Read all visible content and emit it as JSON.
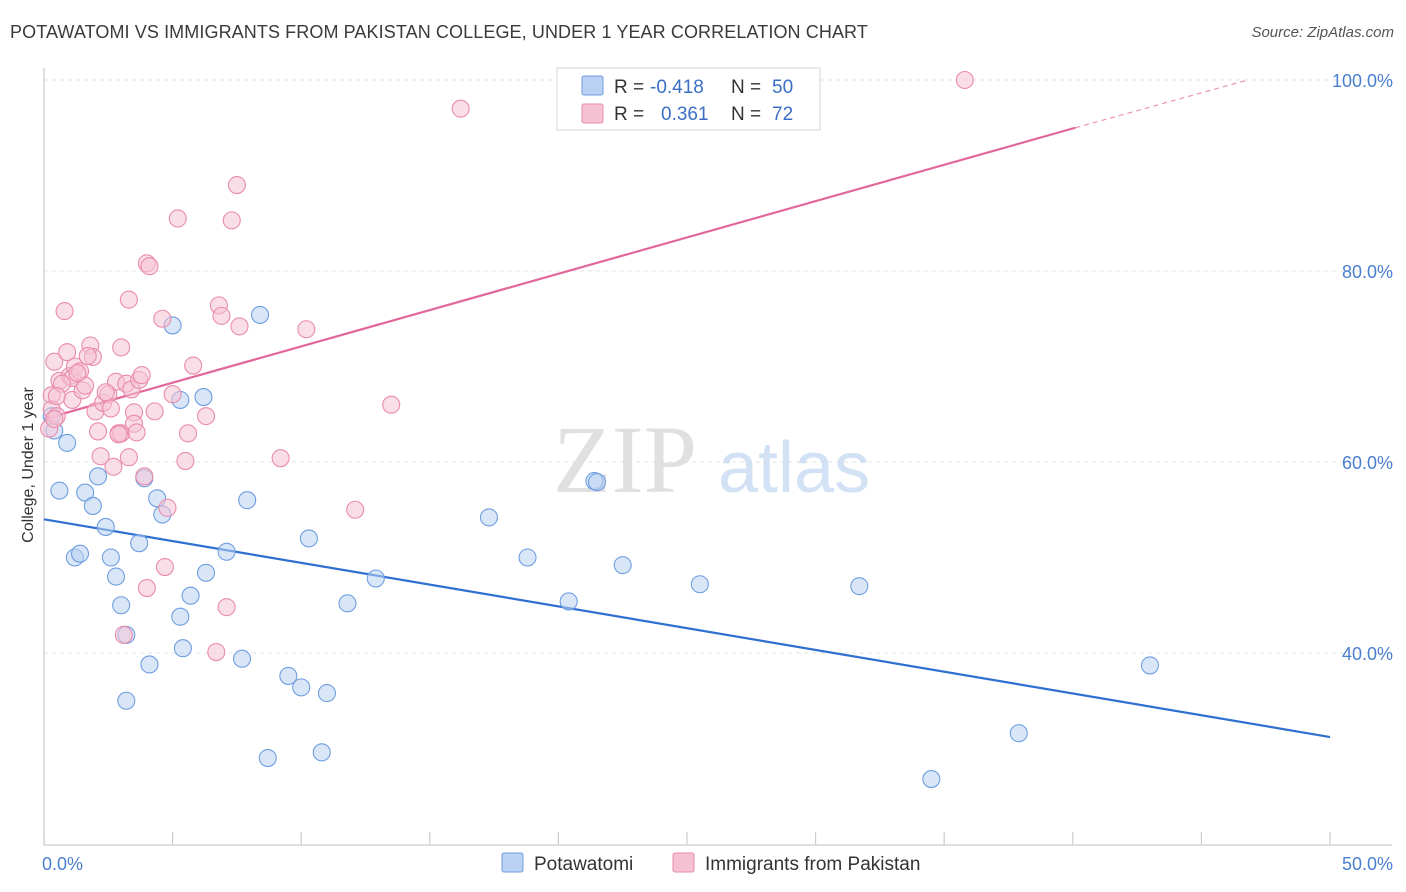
{
  "title": "POTAWATOMI VS IMMIGRANTS FROM PAKISTAN COLLEGE, UNDER 1 YEAR CORRELATION CHART",
  "source": "Source: ZipAtlas.com",
  "watermark": {
    "zip": "ZIP",
    "atlas": "atlas"
  },
  "legend": {
    "rows": [
      {
        "r_label": "R =",
        "r_value": "-0.418",
        "n_label": "N =",
        "n_value": "50"
      },
      {
        "r_label": "R =",
        "r_value": "0.361",
        "n_label": "N =",
        "n_value": "72"
      }
    ]
  },
  "chart_data": {
    "type": "scatter",
    "title": "POTAWATOMI VS IMMIGRANTS FROM PAKISTAN COLLEGE, UNDER 1 YEAR CORRELATION CHART",
    "xlabel": "",
    "ylabel": "College, Under 1 year",
    "xlim": [
      0,
      50
    ],
    "ylim": [
      22,
      102
    ],
    "x_tick_labels": [
      {
        "value": 0,
        "label": "0.0%"
      },
      {
        "value": 50,
        "label": "50.0%"
      }
    ],
    "y_tick_labels": [
      {
        "value": 40,
        "label": "40.0%"
      },
      {
        "value": 60,
        "label": "60.0%"
      },
      {
        "value": 80,
        "label": "80.0%"
      },
      {
        "value": 100,
        "label": "100.0%"
      }
    ],
    "grid": true,
    "legend_position": "top-center",
    "series": [
      {
        "name": "Potawatomi",
        "color": "#6f9ee0",
        "fill": "#b9d1f3",
        "trend": {
          "x0": 0,
          "y0": 54.0,
          "x1": 50,
          "y1": 31.2
        },
        "points": [
          [
            0.3,
            64.8
          ],
          [
            0.4,
            63.3
          ],
          [
            0.6,
            57.0
          ],
          [
            0.9,
            62.0
          ],
          [
            1.2,
            50.0
          ],
          [
            1.4,
            50.4
          ],
          [
            1.6,
            56.8
          ],
          [
            1.9,
            55.4
          ],
          [
            2.1,
            58.5
          ],
          [
            2.4,
            53.2
          ],
          [
            2.6,
            50.0
          ],
          [
            2.8,
            48.0
          ],
          [
            3.0,
            45.0
          ],
          [
            3.2,
            41.9
          ],
          [
            3.2,
            35.0
          ],
          [
            3.7,
            51.5
          ],
          [
            3.9,
            58.3
          ],
          [
            4.1,
            38.8
          ],
          [
            4.4,
            56.2
          ],
          [
            4.6,
            54.5
          ],
          [
            5.0,
            74.3
          ],
          [
            5.3,
            43.8
          ],
          [
            5.3,
            66.5
          ],
          [
            5.4,
            40.5
          ],
          [
            5.7,
            46.0
          ],
          [
            6.2,
            66.8
          ],
          [
            6.3,
            48.4
          ],
          [
            7.1,
            50.6
          ],
          [
            7.7,
            39.4
          ],
          [
            7.9,
            56.0
          ],
          [
            8.4,
            75.4
          ],
          [
            8.7,
            29.0
          ],
          [
            9.5,
            37.6
          ],
          [
            10.0,
            36.4
          ],
          [
            10.3,
            52.0
          ],
          [
            10.8,
            29.6
          ],
          [
            11.0,
            35.8
          ],
          [
            11.8,
            45.2
          ],
          [
            12.9,
            47.8
          ],
          [
            17.3,
            54.2
          ],
          [
            18.8,
            50.0
          ],
          [
            20.4,
            45.4
          ],
          [
            21.4,
            58.0
          ],
          [
            22.5,
            49.2
          ],
          [
            25.5,
            47.2
          ],
          [
            31.7,
            47.0
          ],
          [
            34.5,
            26.8
          ],
          [
            37.9,
            31.6
          ],
          [
            43.0,
            38.7
          ],
          [
            21.5,
            57.9
          ]
        ]
      },
      {
        "name": "Immigrants from Pakistan",
        "color": "#e98cab",
        "fill": "#f6c2d3",
        "trend": {
          "x0": 0,
          "y0": 64.5,
          "x1": 40.1,
          "y1": 95.0,
          "dash_x1": 46.8,
          "dash_y1": 100.0
        },
        "points": [
          [
            0.2,
            63.5
          ],
          [
            0.3,
            67.0
          ],
          [
            0.3,
            65.5
          ],
          [
            0.4,
            70.5
          ],
          [
            0.5,
            64.8
          ],
          [
            0.6,
            68.5
          ],
          [
            0.8,
            75.8
          ],
          [
            0.9,
            71.5
          ],
          [
            1.0,
            69.0
          ],
          [
            1.1,
            68.8
          ],
          [
            1.1,
            66.5
          ],
          [
            1.2,
            70.0
          ],
          [
            1.4,
            69.5
          ],
          [
            1.5,
            67.5
          ],
          [
            1.6,
            68.0
          ],
          [
            1.8,
            72.2
          ],
          [
            1.9,
            71.0
          ],
          [
            2.0,
            65.3
          ],
          [
            2.1,
            63.2
          ],
          [
            2.2,
            60.6
          ],
          [
            2.3,
            66.2
          ],
          [
            2.5,
            67.1
          ],
          [
            2.6,
            65.6
          ],
          [
            2.7,
            59.5
          ],
          [
            2.8,
            68.4
          ],
          [
            2.9,
            63.0
          ],
          [
            3.0,
            72.0
          ],
          [
            3.0,
            63.0
          ],
          [
            3.2,
            68.2
          ],
          [
            3.3,
            60.5
          ],
          [
            3.3,
            77.0
          ],
          [
            3.4,
            67.6
          ],
          [
            3.5,
            65.2
          ],
          [
            3.5,
            64.0
          ],
          [
            3.6,
            63.1
          ],
          [
            3.7,
            68.6
          ],
          [
            3.8,
            69.1
          ],
          [
            3.9,
            58.5
          ],
          [
            4.0,
            80.8
          ],
          [
            4.0,
            46.8
          ],
          [
            4.1,
            80.5
          ],
          [
            4.3,
            65.3
          ],
          [
            4.6,
            75.0
          ],
          [
            4.8,
            55.2
          ],
          [
            4.7,
            49.0
          ],
          [
            5.0,
            67.1
          ],
          [
            5.2,
            85.5
          ],
          [
            5.5,
            60.1
          ],
          [
            5.6,
            63.0
          ],
          [
            5.8,
            70.1
          ],
          [
            6.3,
            64.8
          ],
          [
            6.7,
            40.1
          ],
          [
            6.8,
            76.4
          ],
          [
            6.9,
            75.3
          ],
          [
            7.1,
            44.8
          ],
          [
            7.3,
            85.3
          ],
          [
            7.5,
            89.0
          ],
          [
            7.6,
            74.2
          ],
          [
            9.2,
            60.4
          ],
          [
            10.2,
            73.9
          ],
          [
            12.1,
            55.0
          ],
          [
            13.5,
            66.0
          ],
          [
            16.2,
            97.0
          ],
          [
            35.8,
            100.0
          ],
          [
            0.4,
            64.5
          ],
          [
            1.3,
            69.3
          ],
          [
            2.4,
            67.3
          ],
          [
            3.1,
            41.9
          ],
          [
            1.7,
            71.1
          ],
          [
            0.7,
            68.2
          ],
          [
            2.9,
            62.9
          ],
          [
            0.5,
            66.9
          ]
        ]
      }
    ]
  },
  "bottom_legend": [
    {
      "label": "Potawatomi",
      "fill": "#b9d1f3",
      "stroke": "#6f9ee0"
    },
    {
      "label": "Immigrants from Pakistan",
      "fill": "#f6c2d3",
      "stroke": "#e98cab"
    }
  ]
}
